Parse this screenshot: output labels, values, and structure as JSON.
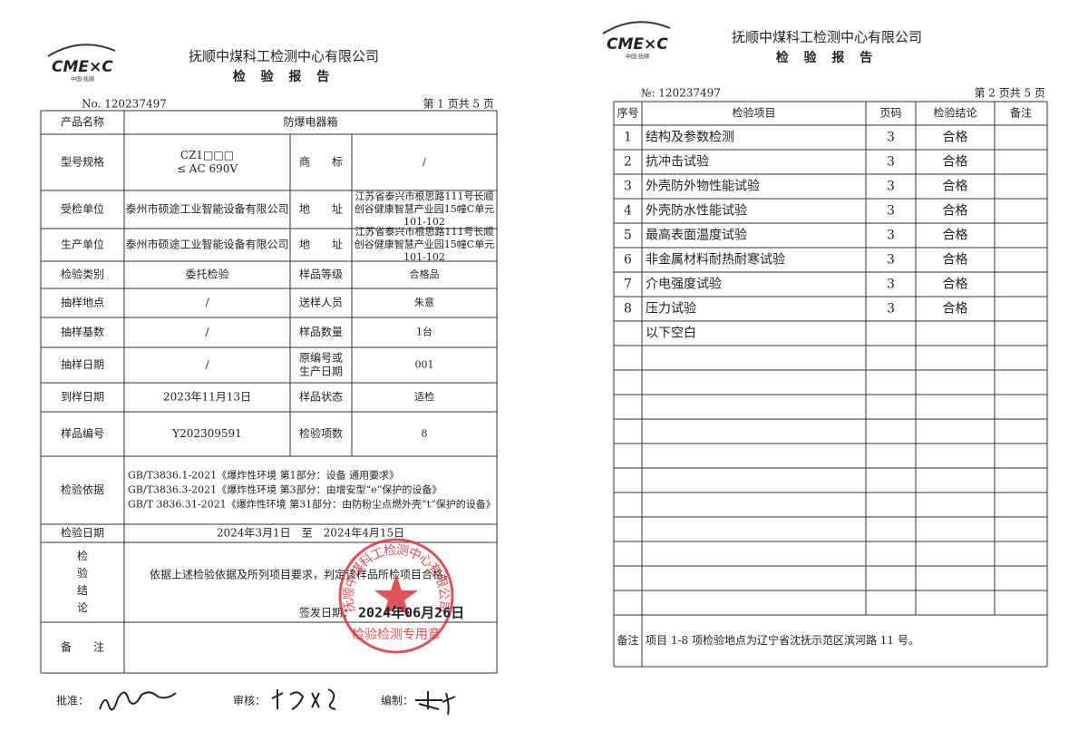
{
  "pages": [
    {
      "header": {
        "logo": "CME×C",
        "logo_sub": "中国·抚顺",
        "company": "抚顺中煤科工检测中心有限公司",
        "title": "检 验 报 告",
        "number": "No. 120237497",
        "page": "第 1 页共 5 页"
      },
      "rows": [
        [
          "产品名称",
          "防爆电器箱"
        ],
        [
          "型号规格",
          [
            "CZ1□□□",
            "≤ AC 690V"
          ],
          "商　　标",
          "/"
        ],
        [
          "受检单位",
          "泰州市硕途工业智能设备有限公司",
          "地　　址",
          [
            "江苏省泰兴市根思路111号长顺",
            "创谷健康智慧产业园15幢C单元",
            "101-102"
          ]
        ],
        [
          "生产单位",
          "泰州市硕途工业智能设备有限公司",
          "地　　址",
          [
            "江苏省泰兴市根思路111号长顺",
            "创谷健康智慧产业园15幢C单元",
            "101-102"
          ]
        ],
        [
          "检验类别",
          "委托检验",
          "样品等级",
          "合格品"
        ],
        [
          "抽样地点",
          "/",
          "送样人员",
          "朱意"
        ],
        [
          "抽样基数",
          "/",
          "样品数量",
          "1台"
        ],
        [
          "抽样日期",
          "/",
          [
            "原编号或",
            "生产日期"
          ],
          "001"
        ],
        [
          "到样日期",
          "2023年11月13日",
          "样品状态",
          "适检"
        ],
        [
          "样品编号",
          "Y202309591",
          "检验项数",
          "8"
        ],
        [
          "检验依据",
          [
            "GB/T3836.1-2021《爆炸性环境 第1部分：设备 通用要求》",
            "GB/T3836.3-2021《爆炸性环境 第3部分：由增安型“e”保护的设备》",
            "GB/T 3836.31-2021《爆炸性环境 第31部分：由防粉尘点燃外壳“t”保护的设备》"
          ]
        ],
        [
          "检验日期",
          "2024年3月1日　至　2024年4月15日"
        ],
        [
          [
            "检",
            "验",
            "结",
            "论"
          ],
          "依据上述检验依据及所列项目要求，判定该样品所检项目合格。"
        ],
        [
          "备　　注"
        ]
      ],
      "issue_label": "签发日期：",
      "stamp": {
        "ring": "抚顺中煤科工检测中心有限公司",
        "bottom": "检验检测专用章",
        "date": "2024年06月26日"
      },
      "signatures": [
        "批准：",
        "审核：",
        "编制："
      ]
    },
    {
      "header": {
        "logo": "CME×C",
        "logo_sub": "中国·抚顺",
        "company": "抚顺中煤科工检测中心有限公司",
        "title": "检 验 报 告",
        "number": "№: 120237497",
        "page": "第 2 页共 5 页"
      },
      "columns": [
        "序号",
        "检验项目",
        "页码",
        "检验结论",
        "备注"
      ],
      "items": [
        [
          "1",
          "结构及参数检测",
          "3",
          "合格"
        ],
        [
          "2",
          "抗冲击试验",
          "3",
          "合格"
        ],
        [
          "3",
          "外壳防外物性能试验",
          "3",
          "合格"
        ],
        [
          "4",
          "外壳防水性能试验",
          "3",
          "合格"
        ],
        [
          "5",
          "最高表面温度试验",
          "3",
          "合格"
        ],
        [
          "6",
          "非金属材料耐热耐寒试验",
          "3",
          "合格"
        ],
        [
          "7",
          "介电强度试验",
          "3",
          "合格"
        ],
        [
          "8",
          "压力试验",
          "3",
          "合格"
        ]
      ],
      "blank_note": "以下空白",
      "remark_label": "备注",
      "remark": "项目 1-8 项检验地点为辽宁省沈抚示范区滨河路 11 号。"
    }
  ]
}
